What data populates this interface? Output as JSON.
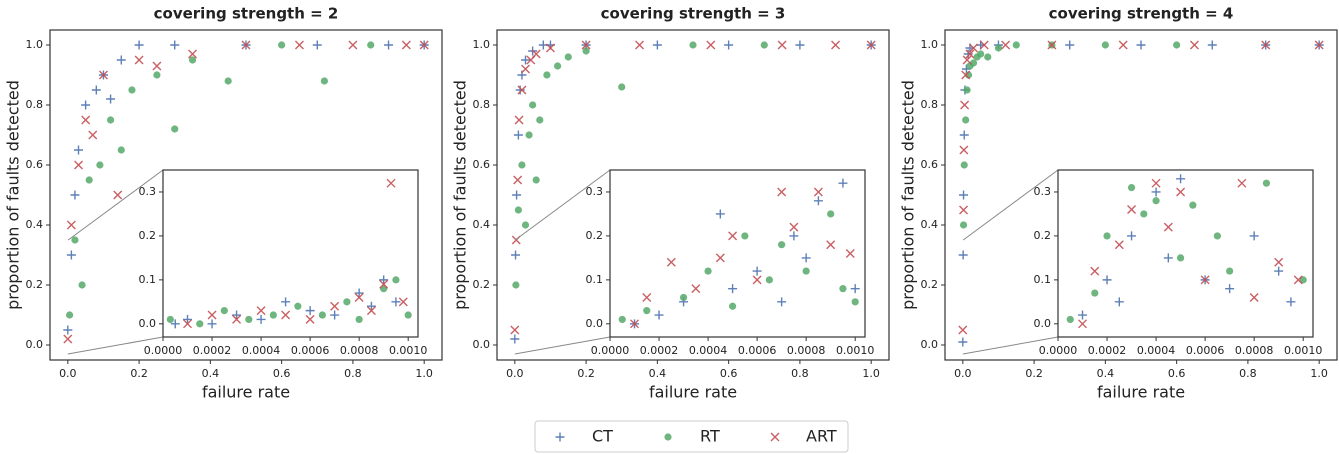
{
  "chart_data": [
    {
      "type": "scatter",
      "title": "covering strength = 2",
      "x_label": "failure rate",
      "y_label": "proportion of faults detected",
      "xlim": [
        -0.05,
        1.05
      ],
      "ylim": [
        -0.05,
        1.05
      ],
      "xticks": [
        {
          "value": 0,
          "label": "0.0"
        },
        0.2,
        0.4,
        0.6,
        0.8,
        {
          "value": 1,
          "label": "1.0"
        }
      ],
      "yticks": [
        {
          "value": 0,
          "label": "0.0"
        },
        0.2,
        0.4,
        0.6,
        0.8,
        {
          "value": 1,
          "label": "1.0"
        }
      ],
      "series": [
        {
          "name": "CT",
          "color": "#4c72b0",
          "marker": "+",
          "x": [
            0,
            0.01,
            0.02,
            0.03,
            0.05,
            0.08,
            0.1,
            0.12,
            0.15,
            0.2,
            0.3,
            0.5,
            0.7,
            0.9,
            1.0
          ],
          "values": [
            0.05,
            0.3,
            0.5,
            0.65,
            0.8,
            0.85,
            0.9,
            0.82,
            0.95,
            1,
            1,
            1,
            1,
            1,
            1
          ]
        },
        {
          "name": "RT",
          "color": "#55a868",
          "marker": "o",
          "x": [
            0.005,
            0.02,
            0.04,
            0.06,
            0.09,
            0.12,
            0.15,
            0.18,
            0.25,
            0.3,
            0.35,
            0.45,
            0.6,
            0.72,
            0.85
          ],
          "values": [
            0.1,
            0.35,
            0.2,
            0.55,
            0.6,
            0.75,
            0.65,
            0.85,
            0.9,
            0.72,
            0.95,
            0.88,
            1,
            0.88,
            1
          ]
        },
        {
          "name": "ART",
          "color": "#c44e52",
          "marker": "x",
          "x": [
            0,
            0.01,
            0.03,
            0.05,
            0.07,
            0.1,
            0.14,
            0.2,
            0.25,
            0.35,
            0.5,
            0.65,
            0.8,
            0.95,
            1.0
          ],
          "values": [
            0.02,
            0.4,
            0.6,
            0.75,
            0.7,
            0.9,
            0.5,
            0.95,
            0.93,
            0.97,
            1,
            1,
            1,
            1,
            1
          ]
        }
      ],
      "inset": {
        "xlim": [
          0,
          0.00104
        ],
        "ylim": [
          -0.03,
          0.35
        ],
        "xticks": [
          {
            "value": 0,
            "label": "0.0000"
          },
          {
            "value": 0.0002,
            "label": "0.0002"
          },
          {
            "value": 0.0004,
            "label": "0.0004"
          },
          {
            "value": 0.0006,
            "label": "0.0006"
          },
          {
            "value": 0.0008,
            "label": "0.0008"
          },
          {
            "value": 0.001,
            "label": "0.0010"
          }
        ],
        "yticks": [
          {
            "value": 0,
            "label": "0.0"
          },
          0.1,
          0.2,
          0.3
        ],
        "series": [
          {
            "x": [
              5e-05,
              0.0001,
              0.0002,
              0.0003,
              0.0004,
              0.0005,
              0.0006,
              0.0007,
              0.0008,
              0.00085,
              0.0009,
              0.00095
            ],
            "values": [
              0,
              0.01,
              0,
              0.02,
              0.01,
              0.05,
              0.03,
              0.02,
              0.07,
              0.04,
              0.1,
              0.05
            ]
          },
          {
            "x": [
              3e-05,
              0.00015,
              0.00025,
              0.00035,
              0.00045,
              0.00055,
              0.00065,
              0.00075,
              0.0008,
              0.0009,
              0.00095,
              0.001
            ],
            "values": [
              0.01,
              0,
              0.03,
              0.01,
              0.02,
              0.04,
              0.02,
              0.05,
              0.01,
              0.08,
              0.1,
              0.02
            ]
          },
          {
            "x": [
              0.0001,
              0.0002,
              0.0003,
              0.0004,
              0.0005,
              0.0006,
              0.0007,
              0.0008,
              0.00085,
              0.0009,
              0.00093,
              0.00098
            ],
            "values": [
              0,
              0.02,
              0.01,
              0.03,
              0.02,
              0.01,
              0.04,
              0.06,
              0.03,
              0.09,
              0.32,
              0.05
            ]
          }
        ]
      }
    },
    {
      "type": "scatter",
      "title": "covering strength = 3",
      "x_label": "failure rate",
      "y_label": "proportion of faults detected",
      "xlim": [
        -0.05,
        1.05
      ],
      "ylim": [
        -0.05,
        1.05
      ],
      "xticks": [
        {
          "value": 0,
          "label": "0.0"
        },
        0.2,
        0.4,
        0.6,
        0.8,
        {
          "value": 1,
          "label": "1.0"
        }
      ],
      "yticks": [
        {
          "value": 0,
          "label": "0.0"
        },
        0.2,
        0.4,
        0.6,
        0.8,
        {
          "value": 1,
          "label": "1.0"
        }
      ],
      "series": [
        {
          "name": "CT",
          "color": "#4c72b0",
          "marker": "+",
          "x": [
            0,
            0.002,
            0.005,
            0.01,
            0.015,
            0.02,
            0.03,
            0.05,
            0.08,
            0.1,
            0.2,
            0.4,
            0.6,
            0.8,
            1.0
          ],
          "values": [
            0.02,
            0.3,
            0.5,
            0.7,
            0.85,
            0.9,
            0.95,
            0.98,
            1,
            1,
            1,
            1,
            1,
            1,
            1
          ]
        },
        {
          "name": "RT",
          "color": "#55a868",
          "marker": "o",
          "x": [
            0.003,
            0.01,
            0.02,
            0.03,
            0.04,
            0.05,
            0.06,
            0.07,
            0.09,
            0.12,
            0.15,
            0.2,
            0.3,
            0.5,
            0.7
          ],
          "values": [
            0.2,
            0.45,
            0.6,
            0.4,
            0.7,
            0.8,
            0.55,
            0.75,
            0.9,
            0.93,
            0.96,
            0.98,
            0.86,
            1,
            1
          ]
        },
        {
          "name": "ART",
          "color": "#c44e52",
          "marker": "x",
          "x": [
            0,
            0.004,
            0.008,
            0.012,
            0.02,
            0.03,
            0.045,
            0.06,
            0.1,
            0.2,
            0.35,
            0.55,
            0.75,
            0.9,
            1.0
          ],
          "values": [
            0.05,
            0.35,
            0.55,
            0.75,
            0.85,
            0.92,
            0.95,
            0.97,
            0.99,
            1,
            1,
            1,
            1,
            1,
            1
          ]
        }
      ],
      "inset": {
        "xlim": [
          0,
          0.00104
        ],
        "ylim": [
          -0.03,
          0.35
        ],
        "xticks": [
          {
            "value": 0,
            "label": "0.0000"
          },
          {
            "value": 0.0002,
            "label": "0.0002"
          },
          {
            "value": 0.0004,
            "label": "0.0004"
          },
          {
            "value": 0.0006,
            "label": "0.0006"
          },
          {
            "value": 0.0008,
            "label": "0.0008"
          },
          {
            "value": 0.001,
            "label": "0.0010"
          }
        ],
        "yticks": [
          {
            "value": 0,
            "label": "0.0"
          },
          0.1,
          0.2,
          0.3
        ],
        "series": [
          {
            "x": [
              0.0001,
              0.0002,
              0.0003,
              0.00045,
              0.0005,
              0.0006,
              0.0007,
              0.00075,
              0.0008,
              0.00085,
              0.00095,
              0.001
            ],
            "values": [
              0,
              0.02,
              0.05,
              0.25,
              0.08,
              0.12,
              0.05,
              0.2,
              0.15,
              0.28,
              0.32,
              0.08
            ]
          },
          {
            "x": [
              5e-05,
              0.00015,
              0.0003,
              0.0004,
              0.0005,
              0.00055,
              0.00065,
              0.0007,
              0.0008,
              0.0009,
              0.00095,
              0.001
            ],
            "values": [
              0.01,
              0.03,
              0.06,
              0.12,
              0.04,
              0.2,
              0.1,
              0.18,
              0.12,
              0.25,
              0.08,
              0.05
            ]
          },
          {
            "x": [
              0.0001,
              0.00015,
              0.00025,
              0.00035,
              0.00045,
              0.0005,
              0.0006,
              0.0007,
              0.00075,
              0.00085,
              0.0009,
              0.00098
            ],
            "values": [
              0,
              0.06,
              0.14,
              0.08,
              0.15,
              0.2,
              0.1,
              0.3,
              0.22,
              0.3,
              0.18,
              0.16
            ]
          }
        ]
      }
    },
    {
      "type": "scatter",
      "title": "covering strength = 4",
      "x_label": "failure rate",
      "y_label": "proportion of faults detected",
      "xlim": [
        -0.05,
        1.05
      ],
      "ylim": [
        -0.05,
        1.05
      ],
      "xticks": [
        {
          "value": 0,
          "label": "0.0"
        },
        0.2,
        0.4,
        0.6,
        0.8,
        {
          "value": 1,
          "label": "1.0"
        }
      ],
      "yticks": [
        {
          "value": 0,
          "label": "0.0"
        },
        0.2,
        0.4,
        0.6,
        0.8,
        {
          "value": 1,
          "label": "1.0"
        }
      ],
      "series": [
        {
          "name": "CT",
          "color": "#4c72b0",
          "marker": "+",
          "x": [
            0,
            0.001,
            0.002,
            0.004,
            0.006,
            0.01,
            0.015,
            0.02,
            0.05,
            0.1,
            0.3,
            0.5,
            0.7,
            0.85,
            1.0
          ],
          "values": [
            0.01,
            0.3,
            0.5,
            0.7,
            0.85,
            0.92,
            0.97,
            0.99,
            1,
            1,
            1,
            1,
            1,
            1,
            1
          ]
        },
        {
          "name": "RT",
          "color": "#55a868",
          "marker": "o",
          "x": [
            0.002,
            0.004,
            0.008,
            0.012,
            0.016,
            0.02,
            0.03,
            0.04,
            0.05,
            0.07,
            0.1,
            0.15,
            0.25,
            0.4,
            0.6
          ],
          "values": [
            0.4,
            0.6,
            0.75,
            0.85,
            0.9,
            0.93,
            0.94,
            0.96,
            0.97,
            0.96,
            0.99,
            1,
            1,
            1,
            1
          ]
        },
        {
          "name": "ART",
          "color": "#c44e52",
          "marker": "x",
          "x": [
            0,
            0.002,
            0.003,
            0.005,
            0.008,
            0.012,
            0.02,
            0.03,
            0.06,
            0.12,
            0.25,
            0.45,
            0.65,
            0.85,
            1.0
          ],
          "values": [
            0.05,
            0.45,
            0.65,
            0.8,
            0.9,
            0.95,
            0.97,
            0.99,
            1,
            1,
            1,
            1,
            1,
            1,
            1
          ]
        }
      ],
      "inset": {
        "xlim": [
          0,
          0.00104
        ],
        "ylim": [
          -0.03,
          0.35
        ],
        "xticks": [
          {
            "value": 0,
            "label": "0.0000"
          },
          {
            "value": 0.0002,
            "label": "0.0002"
          },
          {
            "value": 0.0004,
            "label": "0.0004"
          },
          {
            "value": 0.0006,
            "label": "0.0006"
          },
          {
            "value": 0.0008,
            "label": "0.0008"
          },
          {
            "value": 0.001,
            "label": "0.0010"
          }
        ],
        "yticks": [
          {
            "value": 0,
            "label": "0.0"
          },
          0.1,
          0.2,
          0.3
        ],
        "series": [
          {
            "x": [
              0.0001,
              0.0002,
              0.00025,
              0.0003,
              0.0004,
              0.00045,
              0.0005,
              0.0006,
              0.0007,
              0.0008,
              0.0009,
              0.00095
            ],
            "values": [
              0.02,
              0.1,
              0.05,
              0.2,
              0.3,
              0.15,
              0.33,
              0.1,
              0.08,
              0.2,
              0.12,
              0.05
            ]
          },
          {
            "x": [
              5e-05,
              0.00015,
              0.0002,
              0.0003,
              0.00035,
              0.0004,
              0.0005,
              0.00055,
              0.00065,
              0.0007,
              0.00085,
              0.001
            ],
            "values": [
              0.01,
              0.07,
              0.2,
              0.31,
              0.25,
              0.28,
              0.15,
              0.27,
              0.2,
              0.12,
              0.32,
              0.1
            ]
          },
          {
            "x": [
              0.0001,
              0.00015,
              0.00025,
              0.0003,
              0.0004,
              0.00045,
              0.0005,
              0.0006,
              0.00075,
              0.0008,
              0.0009,
              0.00098
            ],
            "values": [
              0,
              0.12,
              0.18,
              0.26,
              0.32,
              0.22,
              0.3,
              0.1,
              0.32,
              0.06,
              0.14,
              0.1
            ]
          }
        ]
      }
    }
  ]
}
